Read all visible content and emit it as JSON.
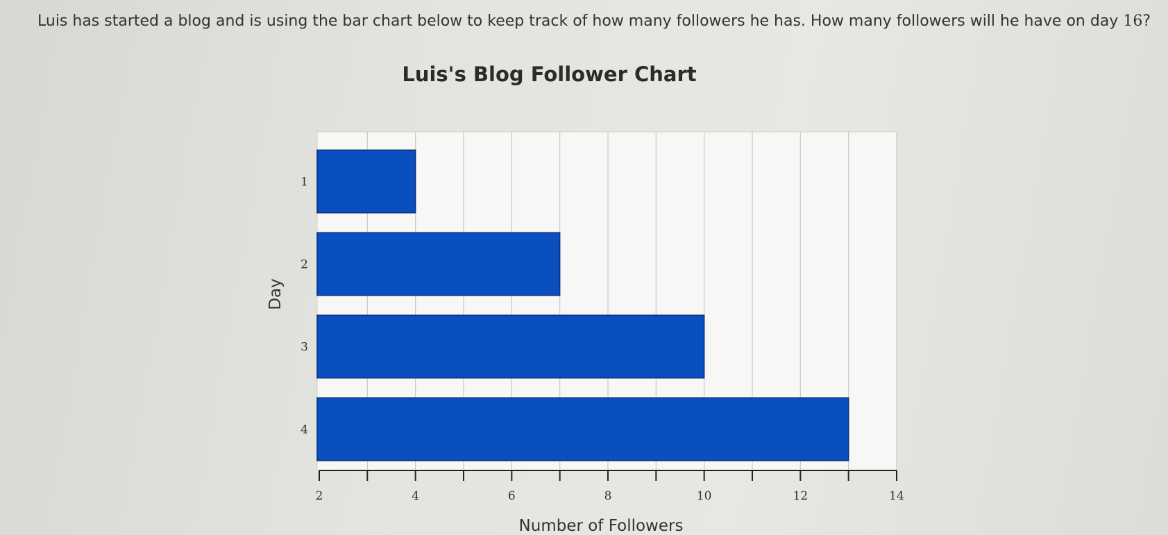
{
  "question": {
    "text_before": "Luis has started a blog and is using the bar chart below to keep track of how many followers he has. How many followers will he have on day ",
    "day_number": "16",
    "text_after": "?"
  },
  "chart_data": {
    "type": "bar",
    "orientation": "horizontal",
    "title": "Luis's Blog Follower Chart",
    "xlabel": "Number of Followers",
    "ylabel": "Day",
    "categories": [
      "1",
      "2",
      "3",
      "4"
    ],
    "values": [
      4,
      7,
      10,
      13
    ],
    "xlim": [
      2,
      14
    ],
    "x_ticks_labeled": [
      "2",
      "4",
      "6",
      "8",
      "10",
      "12",
      "14"
    ],
    "x_minor_tick_step": 1,
    "grid": true,
    "bar_color": "#0a4fbf"
  }
}
